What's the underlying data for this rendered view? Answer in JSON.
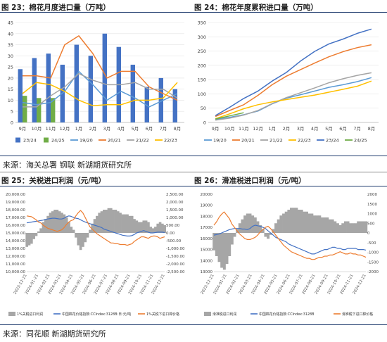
{
  "panels": {
    "p23": {
      "title": "图 23：棉花月度进口量（万吨）"
    },
    "p24": {
      "title": "图 24：棉花年度累积进口量（万吨）"
    },
    "p25": {
      "title": "图 25：关税进口利润（元/吨）"
    },
    "p26": {
      "title": "图 26：滑准税进口利润（元/吨）"
    }
  },
  "sources": {
    "top": "来源：海关总署  钢联  新湖期货研究所",
    "bottom": "来源：同花顺  新湖期货研究所"
  },
  "colors": {
    "s2324": "#4472c4",
    "s2425": "#70ad47",
    "s1920": "#5b9bd5",
    "s2021": "#ed7d31",
    "s2122": "#a5a5a5",
    "s2223": "#ffc000",
    "p_profit": "#a6a6a6",
    "p_index": "#4472c4",
    "p_import": "#ed7d31"
  },
  "chart_data": [
    {
      "id": "c23",
      "type": "bar",
      "categories": [
        "9月",
        "10月",
        "11月",
        "12月",
        "1月",
        "2月",
        "3月",
        "4月",
        "5月",
        "6月",
        "7月",
        "8月"
      ],
      "ylim": [
        0,
        45
      ],
      "yticks": [
        0,
        5,
        10,
        15,
        20,
        25,
        30,
        35,
        40,
        45
      ],
      "bar_series": [
        {
          "name": "23/24",
          "color": "#4472c4",
          "values": [
            24,
            29,
            31,
            26,
            35,
            30,
            40,
            34,
            26,
            16,
            20,
            15
          ]
        },
        {
          "name": "24/25",
          "color": "#70ad47",
          "values": [
            12,
            11,
            11,
            null,
            null,
            null,
            null,
            null,
            null,
            null,
            null,
            null
          ]
        }
      ],
      "line_series": [
        {
          "name": "19/20",
          "color": "#5b9bd5",
          "values": [
            9,
            8,
            9,
            14,
            23,
            17,
            10,
            14,
            11,
            7,
            10,
            13
          ]
        },
        {
          "name": "20/21",
          "color": "#ed7d31",
          "values": [
            21,
            21,
            20,
            35,
            39,
            31,
            20,
            23,
            23,
            16,
            13,
            10
          ]
        },
        {
          "name": "21/22",
          "color": "#a5a5a5",
          "values": [
            7,
            7,
            12,
            16,
            22,
            19,
            17,
            17,
            18,
            15,
            15,
            11
          ]
        },
        {
          "name": "22/23",
          "color": "#ffc000",
          "values": [
            13,
            18,
            17,
            14,
            10,
            7.5,
            8,
            8,
            10,
            10,
            11,
            18
          ]
        }
      ]
    },
    {
      "id": "c24",
      "type": "line",
      "categories": [
        "9月",
        "10月",
        "11月",
        "12月",
        "1月",
        "2月",
        "3月",
        "4月",
        "5月",
        "6月",
        "7月",
        "8月"
      ],
      "ylim": [
        0,
        350
      ],
      "yticks": [
        0,
        50,
        100,
        150,
        200,
        250,
        300,
        350
      ],
      "series": [
        {
          "name": "19/20",
          "color": "#5b9bd5",
          "values": [
            10,
            18,
            27,
            40,
            65,
            85,
            97,
            110,
            123,
            132,
            143,
            157
          ]
        },
        {
          "name": "20/21",
          "color": "#ed7d31",
          "values": [
            21,
            42,
            62,
            95,
            132,
            162,
            185,
            208,
            230,
            248,
            262,
            272
          ]
        },
        {
          "name": "21/22",
          "color": "#a5a5a5",
          "values": [
            8,
            15,
            26,
            42,
            66,
            87,
            104,
            121,
            139,
            153,
            165,
            174
          ]
        },
        {
          "name": "22/23",
          "color": "#ffc000",
          "values": [
            13,
            30,
            48,
            62,
            72,
            80,
            88,
            96,
            106,
            116,
            127,
            145
          ]
        },
        {
          "name": "23/24",
          "color": "#4472c4",
          "values": [
            24,
            53,
            84,
            110,
            145,
            175,
            215,
            249,
            275,
            292,
            312,
            327
          ]
        },
        {
          "name": "24/25",
          "color": "#70ad47",
          "values": [
            12,
            23,
            34,
            null,
            null,
            null,
            null,
            null,
            null,
            null,
            null,
            null
          ]
        }
      ]
    },
    {
      "id": "c25",
      "type": "line",
      "xticks": [
        "2023-12-21",
        "2024-01-21",
        "2024-02-21",
        "2024-03-21",
        "2024-04-21",
        "2024-05-21",
        "2024-06-21",
        "2024-07-21",
        "2024-08-21",
        "2024-09-21",
        "2024-10-21",
        "2024-11-21",
        "2024-12-21"
      ],
      "left_ticks": [
        "10,000.00",
        "11,000.00",
        "12,000.00",
        "13,000.00",
        "14,000.00",
        "15,000.00",
        "16,000.00",
        "17,000.00",
        "18,000.00",
        "19,000.00",
        "20,000.00"
      ],
      "right_ticks": [
        "-2,500.00",
        "-2,000.00",
        "-1,500.00",
        "-1,000.00",
        "-500.00",
        "0.00",
        "500.00",
        "1,000.00",
        "1,500.00",
        "2,000.00",
        "2,500.00"
      ],
      "ylim_left": [
        10000,
        20000
      ],
      "ylim_right": [
        -2500,
        2500
      ],
      "legend": [
        "1%关税进口利润",
        "中国棉花价格指数:CCIndex:3128B:日:元/吨",
        "1%关税下进口棉价格"
      ],
      "series": [
        {
          "name": "1%关税进口利润",
          "axis": "right",
          "kind": "area",
          "values": [
            -900,
            -800,
            -700,
            -400,
            -200,
            100,
            300,
            700,
            900,
            1100,
            1300,
            1400,
            1500,
            1500,
            1400,
            1300,
            1200,
            1000,
            700,
            400,
            200,
            -300,
            -800,
            -1100,
            -900,
            -600,
            -300,
            200,
            600,
            900,
            1100,
            1300,
            1400,
            1500,
            1500,
            1600,
            1600,
            1500,
            1500,
            1400,
            1300,
            1200,
            1200,
            1200,
            1100,
            1100,
            900,
            800,
            700,
            700,
            800,
            800,
            700,
            400,
            300,
            400,
            600,
            700,
            600,
            500
          ]
        },
        {
          "name": "中国棉花价格指数:CCIndex:3128B:日:元/吨",
          "axis": "left",
          "kind": "line",
          "values": [
            16300,
            16350,
            16400,
            16450,
            16500,
            16550,
            16600,
            16650,
            16750,
            16800,
            16850,
            16900,
            16900,
            16850,
            16800,
            16800,
            16900,
            17100,
            17200,
            17150,
            17000,
            16900,
            16850,
            16700,
            16550,
            16400,
            16300,
            16200,
            16100,
            16000,
            15900,
            15800,
            15700,
            15500,
            15400,
            15300,
            15200,
            15100,
            15000,
            14900,
            14800,
            14700,
            14650,
            14600,
            14600,
            14650,
            14800,
            15000,
            15100,
            15200,
            15300,
            15200,
            15100,
            15000,
            15000,
            15050,
            15100,
            15100,
            15100,
            15050
          ]
        },
        {
          "name": "1%关税下进口棉价格",
          "axis": "left",
          "kind": "line",
          "values": [
            17200,
            17150,
            17100,
            16900,
            16700,
            16400,
            16300,
            16000,
            15800,
            15600,
            15500,
            15400,
            15300,
            15200,
            15300,
            15400,
            15700,
            16100,
            16400,
            16600,
            16700,
            17200,
            17600,
            17900,
            17600,
            17000,
            16400,
            15800,
            15500,
            15200,
            14900,
            14700,
            14500,
            14300,
            14100,
            13900,
            13700,
            13700,
            13600,
            13600,
            13500,
            13500,
            13500,
            13400,
            13500,
            13600,
            13900,
            14100,
            14300,
            14500,
            14500,
            14400,
            14300,
            14500,
            14600,
            14600,
            14500,
            14300,
            14400,
            14500
          ]
        }
      ]
    },
    {
      "id": "c26",
      "type": "line",
      "xticks": [
        "2023-12-21",
        "2024-01-21",
        "2024-02-21",
        "2024-03-21",
        "2024-04-21",
        "2024-05-21",
        "2024-06-21",
        "2024-07-21",
        "2024-08-21",
        "2024-09-21",
        "2024-10-21",
        "2024-11-21",
        "2024-12-21"
      ],
      "left_ticks": [
        "13000",
        "14000",
        "15000",
        "16000",
        "17000",
        "18000",
        "19000",
        "20000"
      ],
      "right_ticks": [
        "-2000",
        "-1500",
        "-1000",
        "-500",
        "0",
        "500",
        "1000",
        "1500",
        "2000"
      ],
      "ylim_left": [
        13000,
        20000
      ],
      "ylim_right": [
        -2000,
        2000
      ],
      "legend": [
        "滑准税进口利润",
        "中国棉花价格指数:CCIndex:3128B",
        "滑准税下进口棉价格"
      ],
      "series": [
        {
          "name": "滑准税进口利润",
          "axis": "right",
          "kind": "area",
          "values": [
            -900,
            -1200,
            -1500,
            -1800,
            -1900,
            -1600,
            -1200,
            -600,
            -200,
            200,
            500,
            700,
            900,
            1000,
            1000,
            900,
            800,
            600,
            400,
            200,
            -200,
            -300,
            -100,
            200,
            500,
            700,
            900,
            1000,
            1100,
            1200,
            1300,
            1300,
            1300,
            1200,
            1200,
            1100,
            1100,
            1000,
            1000,
            900,
            900,
            900,
            800,
            800,
            800,
            700,
            700,
            600,
            500,
            400,
            500,
            600,
            600,
            500,
            500,
            500,
            600,
            600,
            600,
            600
          ]
        },
        {
          "name": "中国棉花价格指数:CCIndex:3128B",
          "axis": "left",
          "kind": "line",
          "values": [
            16300,
            16350,
            16400,
            16500,
            16600,
            16700,
            16800,
            16850,
            16900,
            16900,
            16900,
            16850,
            16850,
            16800,
            16900,
            17100,
            17200,
            17150,
            17100,
            17000,
            16900,
            16700,
            16500,
            16300,
            16100,
            16000,
            15900,
            15800,
            15700,
            15500,
            15400,
            15300,
            15200,
            15100,
            15000,
            14900,
            14800,
            14700,
            14600,
            14600,
            14700,
            14800,
            14900,
            15000,
            15000,
            15100,
            15200,
            15200,
            15100,
            15100,
            15000,
            15000,
            15100,
            15100,
            15100,
            15100,
            15000,
            15000,
            15000,
            14950
          ]
        },
        {
          "name": "滑准税下进口棉价格",
          "axis": "left",
          "kind": "line",
          "values": [
            17200,
            17500,
            17900,
            18200,
            18400,
            18100,
            17800,
            17300,
            17000,
            16700,
            16400,
            16200,
            16000,
            15900,
            15900,
            16000,
            16100,
            16300,
            16600,
            16800,
            17000,
            17100,
            16900,
            16600,
            16300,
            16000,
            15700,
            15400,
            15200,
            15000,
            14800,
            14700,
            14600,
            14500,
            14400,
            14300,
            14200,
            14200,
            14100,
            14100,
            14200,
            14300,
            14300,
            14400,
            14400,
            14500,
            14500,
            14600,
            14700,
            14800,
            14700,
            14600,
            14600,
            14700,
            14600,
            14600,
            14500,
            14500,
            14400,
            14300
          ]
        }
      ]
    }
  ]
}
